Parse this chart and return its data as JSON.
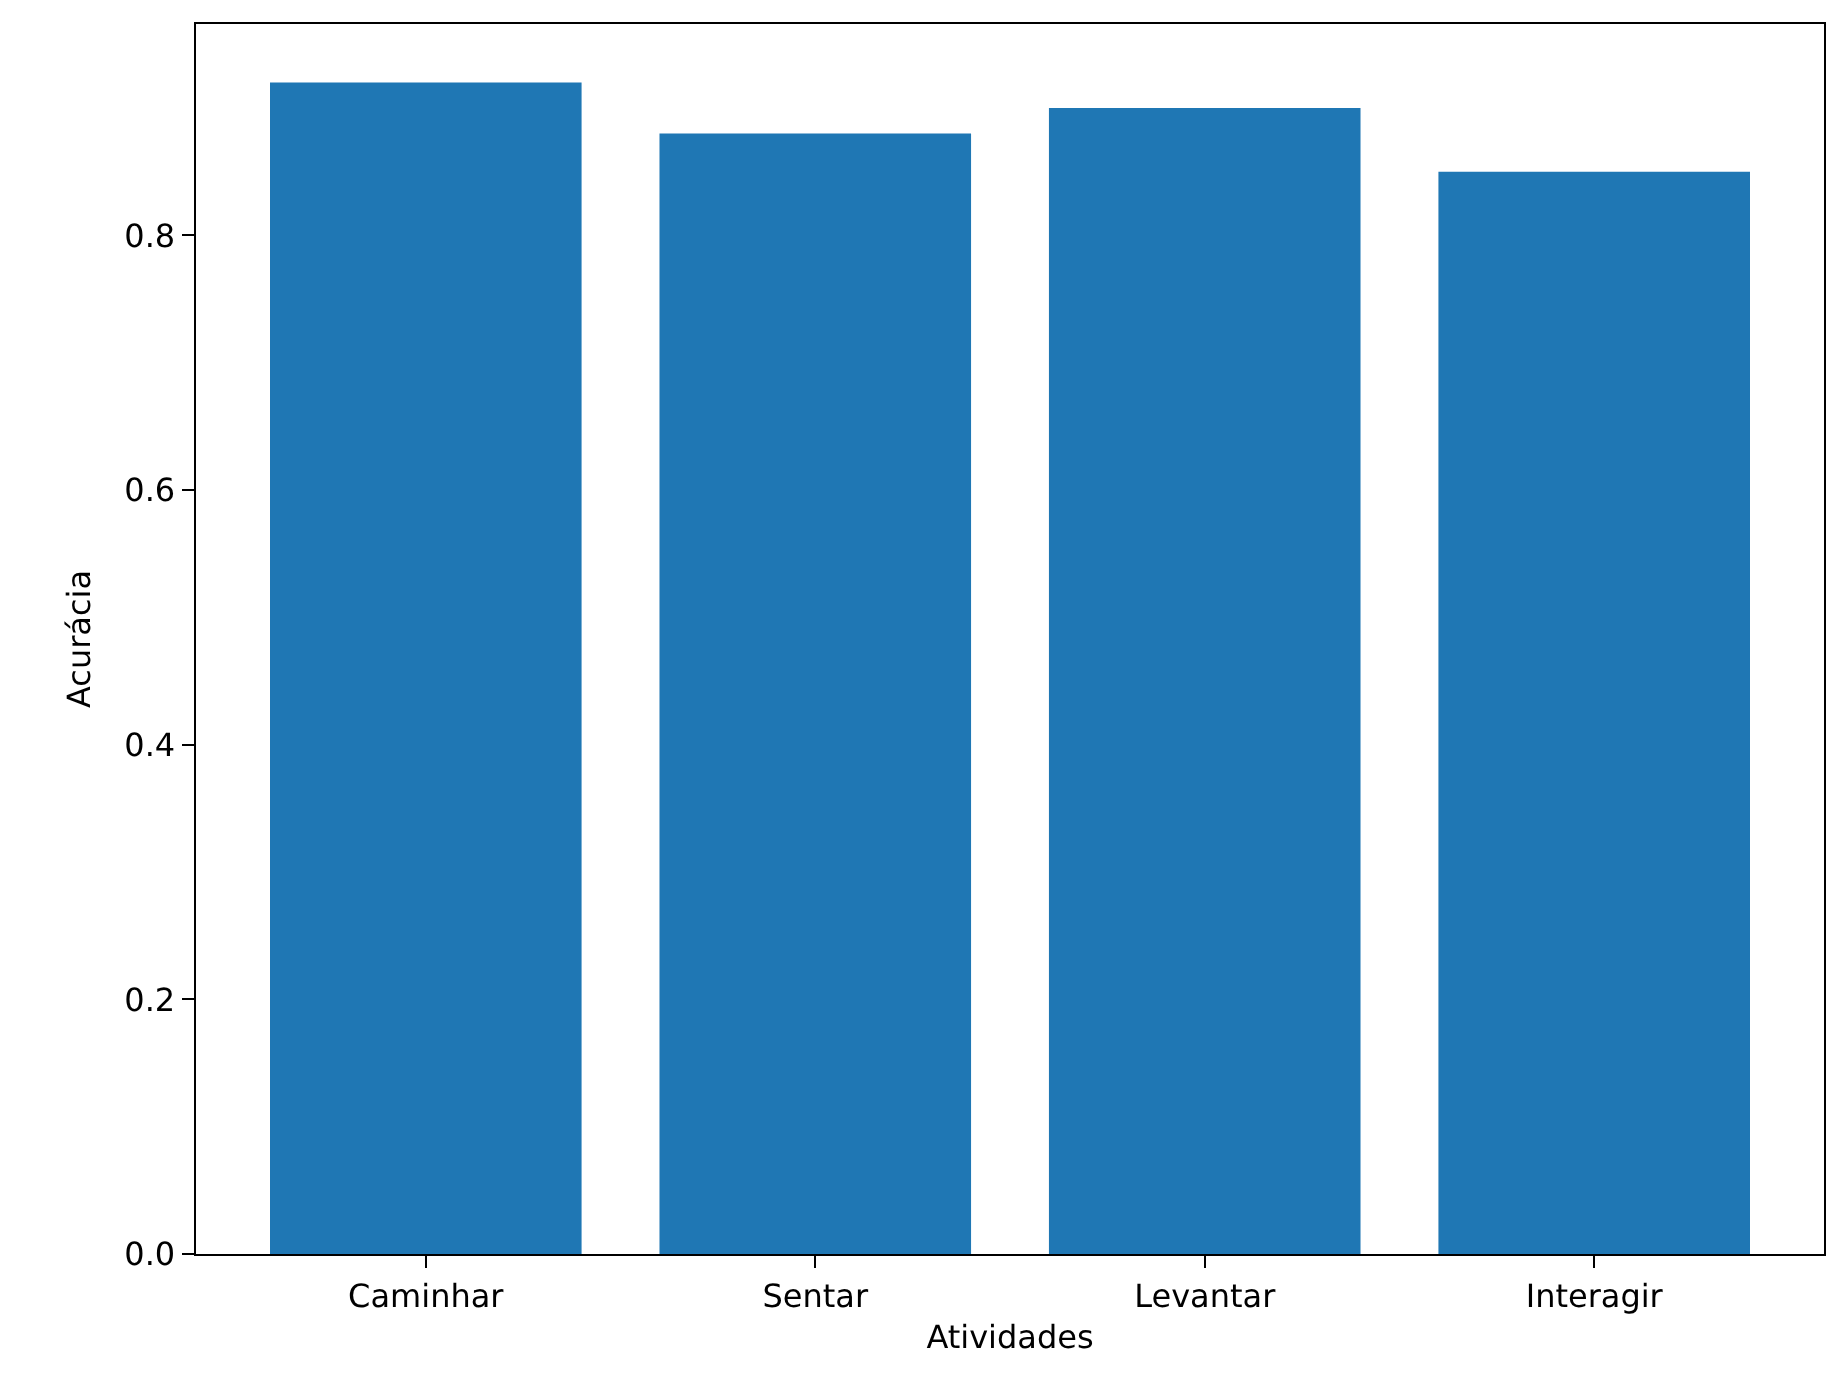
{
  "chart_data": {
    "type": "bar",
    "xlabel": "Atividades",
    "ylabel": "Acurácia",
    "categories": [
      "Caminhar",
      "Sentar",
      "Levantar",
      "Interagir"
    ],
    "values": [
      0.92,
      0.88,
      0.9,
      0.85
    ],
    "color": "#1f77b4",
    "ylim": [
      0,
      0.966
    ],
    "yticks": [
      {
        "value": 0,
        "label": "0.0"
      },
      {
        "value": 0.2,
        "label": "0.2"
      },
      {
        "value": 0.4,
        "label": "0.4"
      },
      {
        "value": 0.6,
        "label": "0.6"
      },
      {
        "value": 0.8,
        "label": "0.8"
      }
    ],
    "grid": false,
    "legend": false
  }
}
